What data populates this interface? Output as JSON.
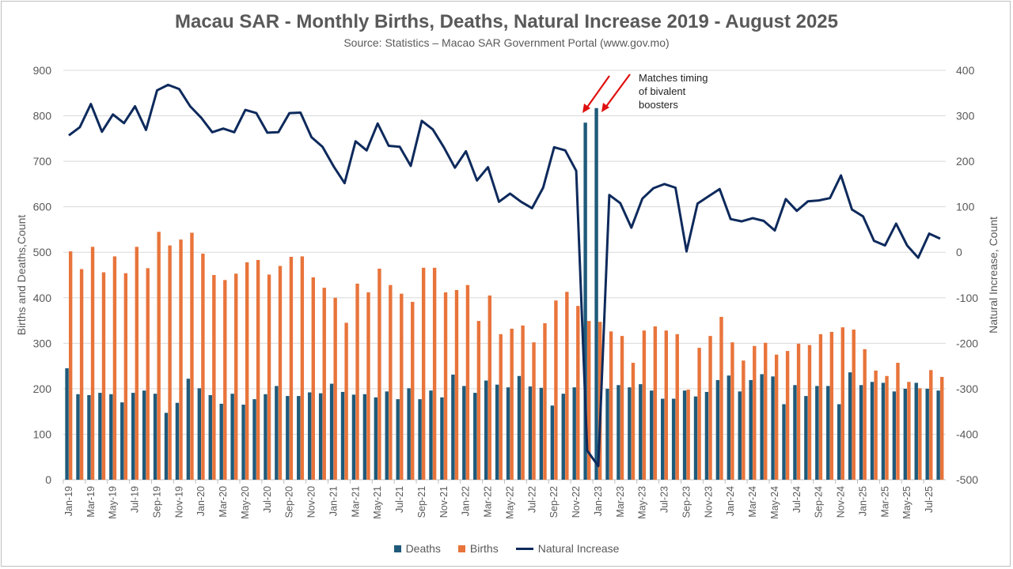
{
  "chart_data": {
    "type": "bar+line",
    "title": "Macau SAR - Monthly Births, Deaths, Natural Increase 2019 - August 2025",
    "subtitle": "Source: Statistics – Macao SAR Government Portal (www.gov.mo)",
    "ylabel": "Births and Deaths,Count",
    "y2label": "Natural Increase, Count",
    "ylim": [
      0,
      900
    ],
    "y2lim": [
      -500,
      400
    ],
    "yticks": [
      "0",
      "100",
      "200",
      "300",
      "400",
      "500",
      "600",
      "700",
      "800",
      "900"
    ],
    "y2ticks": [
      "-500",
      "-400",
      "-300",
      "-200",
      "-100",
      "0",
      "100",
      "200",
      "300",
      "400"
    ],
    "x_range": "Jan-19 to Aug-25 (monthly)",
    "x_tick_labels": [
      "Jan-19",
      "Mar-19",
      "May-19",
      "Jul-19",
      "Sep-19",
      "Nov-19",
      "Jan-20",
      "Mar-20",
      "May-20",
      "Jul-20",
      "Sep-20",
      "Nov-20",
      "Jan-21",
      "Mar-21",
      "May-21",
      "Jul-21",
      "Sep-21",
      "Nov-21",
      "Jan-22",
      "Mar-22",
      "May-22",
      "Jul-22",
      "Sep-22",
      "Nov-22",
      "Jan-23",
      "Mar-23",
      "May-23",
      "Jul-23",
      "Sep-23",
      "Nov-23",
      "Jan-24",
      "Mar-24",
      "May-24",
      "Jul-24",
      "Sep-24",
      "Nov-24",
      "Jan-25",
      "Mar-25",
      "May-25",
      "Jul-25"
    ],
    "series": [
      {
        "name": "Deaths",
        "type": "bar",
        "color": "#1f5a7a",
        "axis": "left",
        "values": [
          245,
          188,
          186,
          191,
          188,
          170,
          191,
          196,
          189,
          147,
          169,
          222,
          201,
          186,
          167,
          189,
          165,
          177,
          188,
          206,
          184,
          184,
          192,
          190,
          211,
          193,
          187,
          188,
          181,
          194,
          177,
          201,
          177,
          196,
          181,
          231,
          206,
          191,
          218,
          209,
          203,
          228,
          205,
          202,
          163,
          189,
          203,
          785,
          817,
          200,
          208,
          203,
          210,
          196,
          178,
          178,
          196,
          183,
          193,
          219,
          229,
          194,
          219,
          232,
          227,
          166,
          208,
          184,
          206,
          206,
          166,
          236,
          208,
          215,
          213,
          194,
          200,
          213,
          200,
          196
        ]
      },
      {
        "name": "Births",
        "type": "bar",
        "color": "#e8743b",
        "axis": "left",
        "values": [
          502,
          463,
          512,
          456,
          491,
          454,
          512,
          465,
          545,
          515,
          528,
          543,
          497,
          450,
          439,
          453,
          478,
          483,
          451,
          470,
          490,
          491,
          445,
          422,
          400,
          345,
          431,
          412,
          464,
          428,
          409,
          391,
          466,
          466,
          412,
          417,
          428,
          349,
          405,
          320,
          332,
          339,
          302,
          344,
          394,
          413,
          382,
          349,
          347,
          326,
          316,
          257,
          328,
          337,
          328,
          320,
          198,
          290,
          316,
          358,
          302,
          262,
          294,
          301,
          275,
          283,
          299,
          296,
          320,
          325,
          335,
          330,
          287,
          240,
          228,
          257,
          215,
          201,
          241,
          226
        ]
      },
      {
        "name": "Natural Increase",
        "type": "line",
        "color": "#0e2a5c",
        "axis": "right",
        "formula": "Births - Deaths"
      }
    ],
    "legend_position": "bottom",
    "grid": true,
    "annotation": {
      "text_lines": [
        "Matches timing",
        "of bivalent",
        "boosters"
      ],
      "points_to": [
        "Dec-22",
        "Jan-23"
      ],
      "arrow_color": "#e01010"
    }
  }
}
